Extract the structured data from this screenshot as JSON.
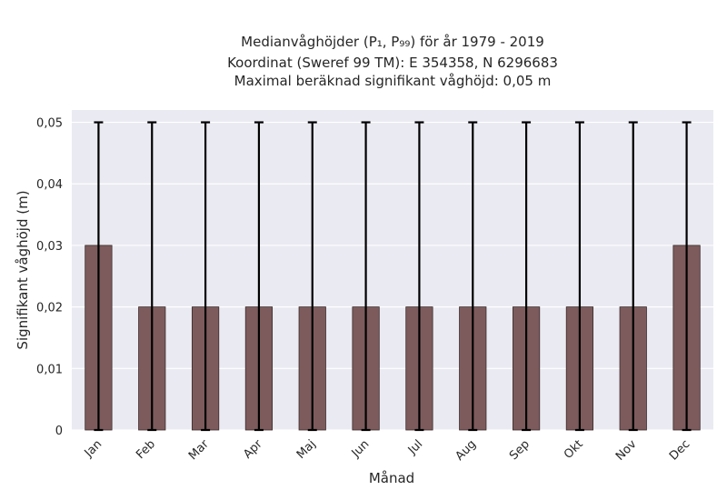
{
  "chart_data": {
    "type": "bar",
    "title_lines": [
      "Medianvåghöjder (P₁, P₉₉) för år 1979 - 2019",
      "Koordinat (Sweref 99 TM): E 354358, N 6296683",
      "Maximal beräknad signifikant våghöjd: 0,05 m"
    ],
    "xlabel": "Månad",
    "ylabel": "Signifikant våghöjd (m)",
    "categories": [
      "Jan",
      "Feb",
      "Mar",
      "Apr",
      "Maj",
      "Jun",
      "Jul",
      "Aug",
      "Sep",
      "Okt",
      "Nov",
      "Dec"
    ],
    "values": [
      0.03,
      0.02,
      0.02,
      0.02,
      0.02,
      0.02,
      0.02,
      0.02,
      0.02,
      0.02,
      0.02,
      0.03
    ],
    "error_low": [
      0,
      0,
      0,
      0,
      0,
      0,
      0,
      0,
      0,
      0,
      0,
      0
    ],
    "error_high": [
      0.05,
      0.05,
      0.05,
      0.05,
      0.05,
      0.05,
      0.05,
      0.05,
      0.05,
      0.05,
      0.05,
      0.05
    ],
    "ylim": [
      0,
      0.052
    ],
    "yticks": [
      0,
      0.01,
      0.02,
      0.03,
      0.04,
      0.05
    ],
    "ytick_labels": [
      "0",
      "0,01",
      "0,02",
      "0,03",
      "0,04",
      "0,05"
    ],
    "grid": true,
    "colors": {
      "bar": "#7d5b5c",
      "bar_edge": "#3a2a2a",
      "error": "#000000",
      "plot_bg": "#eaeaf2",
      "grid": "#ffffff"
    }
  }
}
